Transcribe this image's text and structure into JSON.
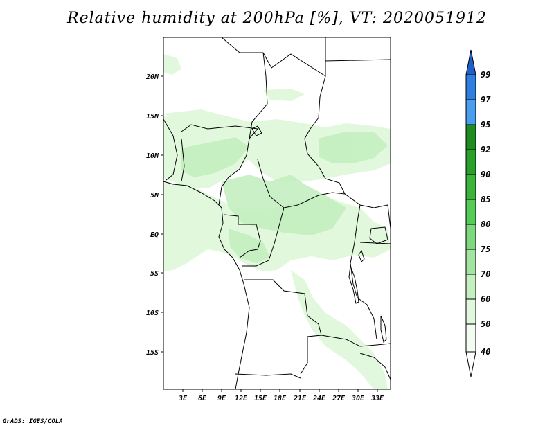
{
  "title": "Relative humidity at 200hPa [%], VT: 2020051912",
  "credit": "GrADS: IGES/COLA",
  "axes": {
    "lon_labels": [
      "3E",
      "6E",
      "9E",
      "12E",
      "15E",
      "18E",
      "21E",
      "24E",
      "27E",
      "30E",
      "33E"
    ],
    "lat_labels": [
      "20N",
      "15N",
      "10N",
      "5N",
      "EQ",
      "5S",
      "10S",
      "15S"
    ]
  },
  "colorbar": {
    "levels": [
      "99",
      "97",
      "95",
      "92",
      "90",
      "85",
      "80",
      "75",
      "70",
      "60",
      "50",
      "40"
    ],
    "colors": [
      "#1e5fc8",
      "#2f7fe0",
      "#4a9ef0",
      "#1f8c1f",
      "#2aa02a",
      "#3cb43c",
      "#55cc55",
      "#7ed87e",
      "#a3e4a0",
      "#c4efc0",
      "#e0f8dc",
      "#f2fcf0",
      "#ffffff"
    ]
  },
  "chart_data": {
    "type": "heatmap",
    "variable": "Relative humidity at 200hPa",
    "units": "%",
    "valid_time": "2020051912",
    "lon_range": [
      0,
      35
    ],
    "lat_range": [
      -20,
      24
    ],
    "contour_levels": [
      40,
      50,
      60,
      70,
      75,
      80,
      85,
      90,
      92,
      95,
      97,
      99
    ],
    "observed_max_band": [
      60,
      70
    ]
  }
}
